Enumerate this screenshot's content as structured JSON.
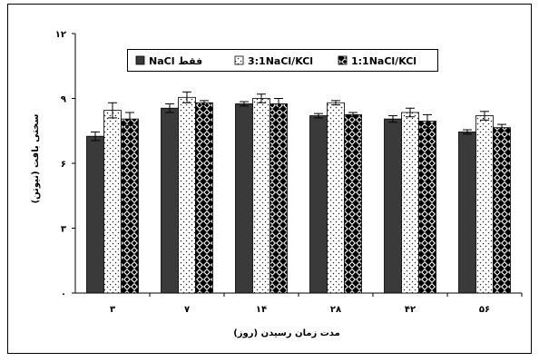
{
  "chart_data": {
    "type": "bar",
    "xlabel": "مدت زمان رسیدن (روز)",
    "ylabel": "سختی بافت (نیوتن)",
    "ylim": [
      0,
      12
    ],
    "yticks": [
      "۰",
      "۳",
      "۶",
      "۹",
      "۱۲"
    ],
    "ytick_values": [
      0,
      3,
      6,
      9,
      12
    ],
    "categories": [
      "۳",
      "۷",
      "۱۴",
      "۲۸",
      "۴۲",
      "۵۶"
    ],
    "grid": false,
    "legend_position": "top",
    "series": [
      {
        "name": "NaCl فقط",
        "pattern": "solid-dark",
        "color": "#3a3a3a",
        "values": [
          7.25,
          8.55,
          8.75,
          8.2,
          8.05,
          7.45
        ],
        "errors": [
          0.2,
          0.2,
          0.1,
          0.1,
          0.15,
          0.1
        ]
      },
      {
        "name": "3:1NaCl/KCl",
        "pattern": "dots-on-white",
        "color": "#ffffff",
        "values": [
          8.45,
          9.05,
          9.0,
          8.8,
          8.35,
          8.2
        ],
        "errors": [
          0.35,
          0.25,
          0.2,
          0.1,
          0.2,
          0.2
        ]
      },
      {
        "name": "1:1NaCl/KCl",
        "pattern": "checker-diamond",
        "color": "#000000",
        "values": [
          8.05,
          8.8,
          8.75,
          8.25,
          7.95,
          7.65
        ],
        "errors": [
          0.3,
          0.1,
          0.25,
          0.1,
          0.3,
          0.15
        ]
      }
    ]
  }
}
